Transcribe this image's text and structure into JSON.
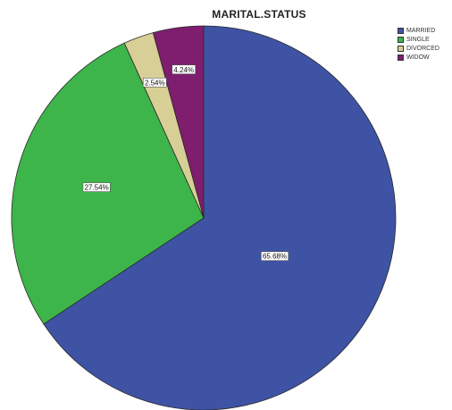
{
  "chart_data": {
    "type": "pie",
    "title": "MARITAL.STATUS",
    "start_angle_deg": 0,
    "direction": "clockwise",
    "legend_position": "top-right",
    "slices": [
      {
        "label": "MARRIED",
        "value": 65.68,
        "value_label": "65.68%",
        "color": "#3e53a4"
      },
      {
        "label": "SINGLE",
        "value": 27.54,
        "value_label": "27.54%",
        "color": "#3db54a"
      },
      {
        "label": "DIVORCED",
        "value": 2.54,
        "value_label": "2.54%",
        "color": "#d8cf96"
      },
      {
        "label": "WIDOW",
        "value": 4.24,
        "value_label": "4.24%",
        "color": "#7f1d6e"
      }
    ]
  }
}
